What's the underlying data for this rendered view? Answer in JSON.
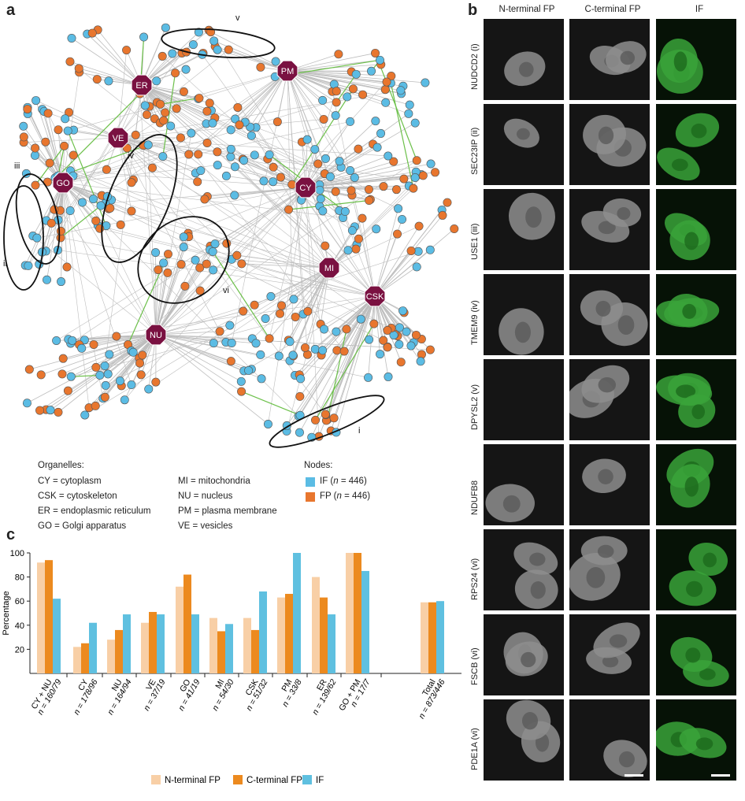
{
  "panels": {
    "a": "a",
    "b": "b",
    "c": "c"
  },
  "network": {
    "hubs": [
      {
        "label": "ER"
      },
      {
        "label": "PM"
      },
      {
        "label": "VE"
      },
      {
        "label": "GO"
      },
      {
        "label": "CY"
      },
      {
        "label": "MI"
      },
      {
        "label": "CSK"
      },
      {
        "label": "NU"
      }
    ],
    "clusters": [
      "i",
      "ii",
      "iii",
      "iv",
      "v",
      "vi"
    ],
    "colors": {
      "IF": "#5bbce4",
      "FP": "#e8762e",
      "hub": "#7a1141",
      "edge": "#bdbdbd",
      "edge_green": "#6cc04a"
    }
  },
  "legend": {
    "organelles_title": "Organelles:",
    "organelles": [
      "CY = cytoplasm",
      "CSK = cytoskeleton",
      "ER = endoplasmic reticulum",
      "GO = Golgi apparatus",
      "MI = mitochondria",
      "NU = nucleus",
      "PM = plasma membrane",
      "VE = vesicles"
    ],
    "nodes_title": "Nodes:",
    "nodes": [
      {
        "prefix": "IF (",
        "n": "n",
        "suffix": " = 446)",
        "color": "#5bbce4"
      },
      {
        "prefix": "FP (",
        "n": "n",
        "suffix": " = 446)",
        "color": "#e8762e"
      }
    ]
  },
  "micrographs": {
    "columns": [
      "N-terminal FP",
      "C-terminal FP",
      "IF"
    ],
    "rows": [
      "NUDCD2 (i)",
      "SEC23IP (ii)",
      "USE1 (iii)",
      "TMEM9 (iv)",
      "DPYSL2 (v)",
      "NDUFB8",
      "RPS24 (vi)",
      "FSCB (vi)",
      "PDE1A (vi)"
    ]
  },
  "chart_data": {
    "type": "bar",
    "ylabel": "Percentage",
    "ylim": [
      0,
      100
    ],
    "yticks": [
      20,
      40,
      60,
      80,
      100
    ],
    "categories": [
      "CY + NU",
      "CY",
      "NU",
      "VE",
      "GO",
      "MI",
      "CSK",
      "PM",
      "ER",
      "GO + PM",
      "Total"
    ],
    "category_n": [
      "n = 160/79",
      "n = 178/96",
      "n = 164/94",
      "n = 37/19",
      "n = 41/19",
      "n = 54/30",
      "n = 51/32",
      "n = 33/8",
      "n = 139/62",
      "n = 17/7",
      "n = 873/446"
    ],
    "series": [
      {
        "name": "N-terminal FP",
        "color": "#f8cfa6",
        "values": [
          92,
          22,
          28,
          42,
          72,
          46,
          46,
          63,
          80,
          100,
          59
        ]
      },
      {
        "name": "C-terminal FP",
        "color": "#ec8a1f",
        "values": [
          94,
          25,
          36,
          51,
          82,
          35,
          36,
          66,
          63,
          100,
          59
        ]
      },
      {
        "name": "IF",
        "color": "#5fc0e0",
        "values": [
          62,
          42,
          49,
          49,
          49,
          41,
          68,
          100,
          49,
          85,
          60
        ]
      }
    ]
  }
}
